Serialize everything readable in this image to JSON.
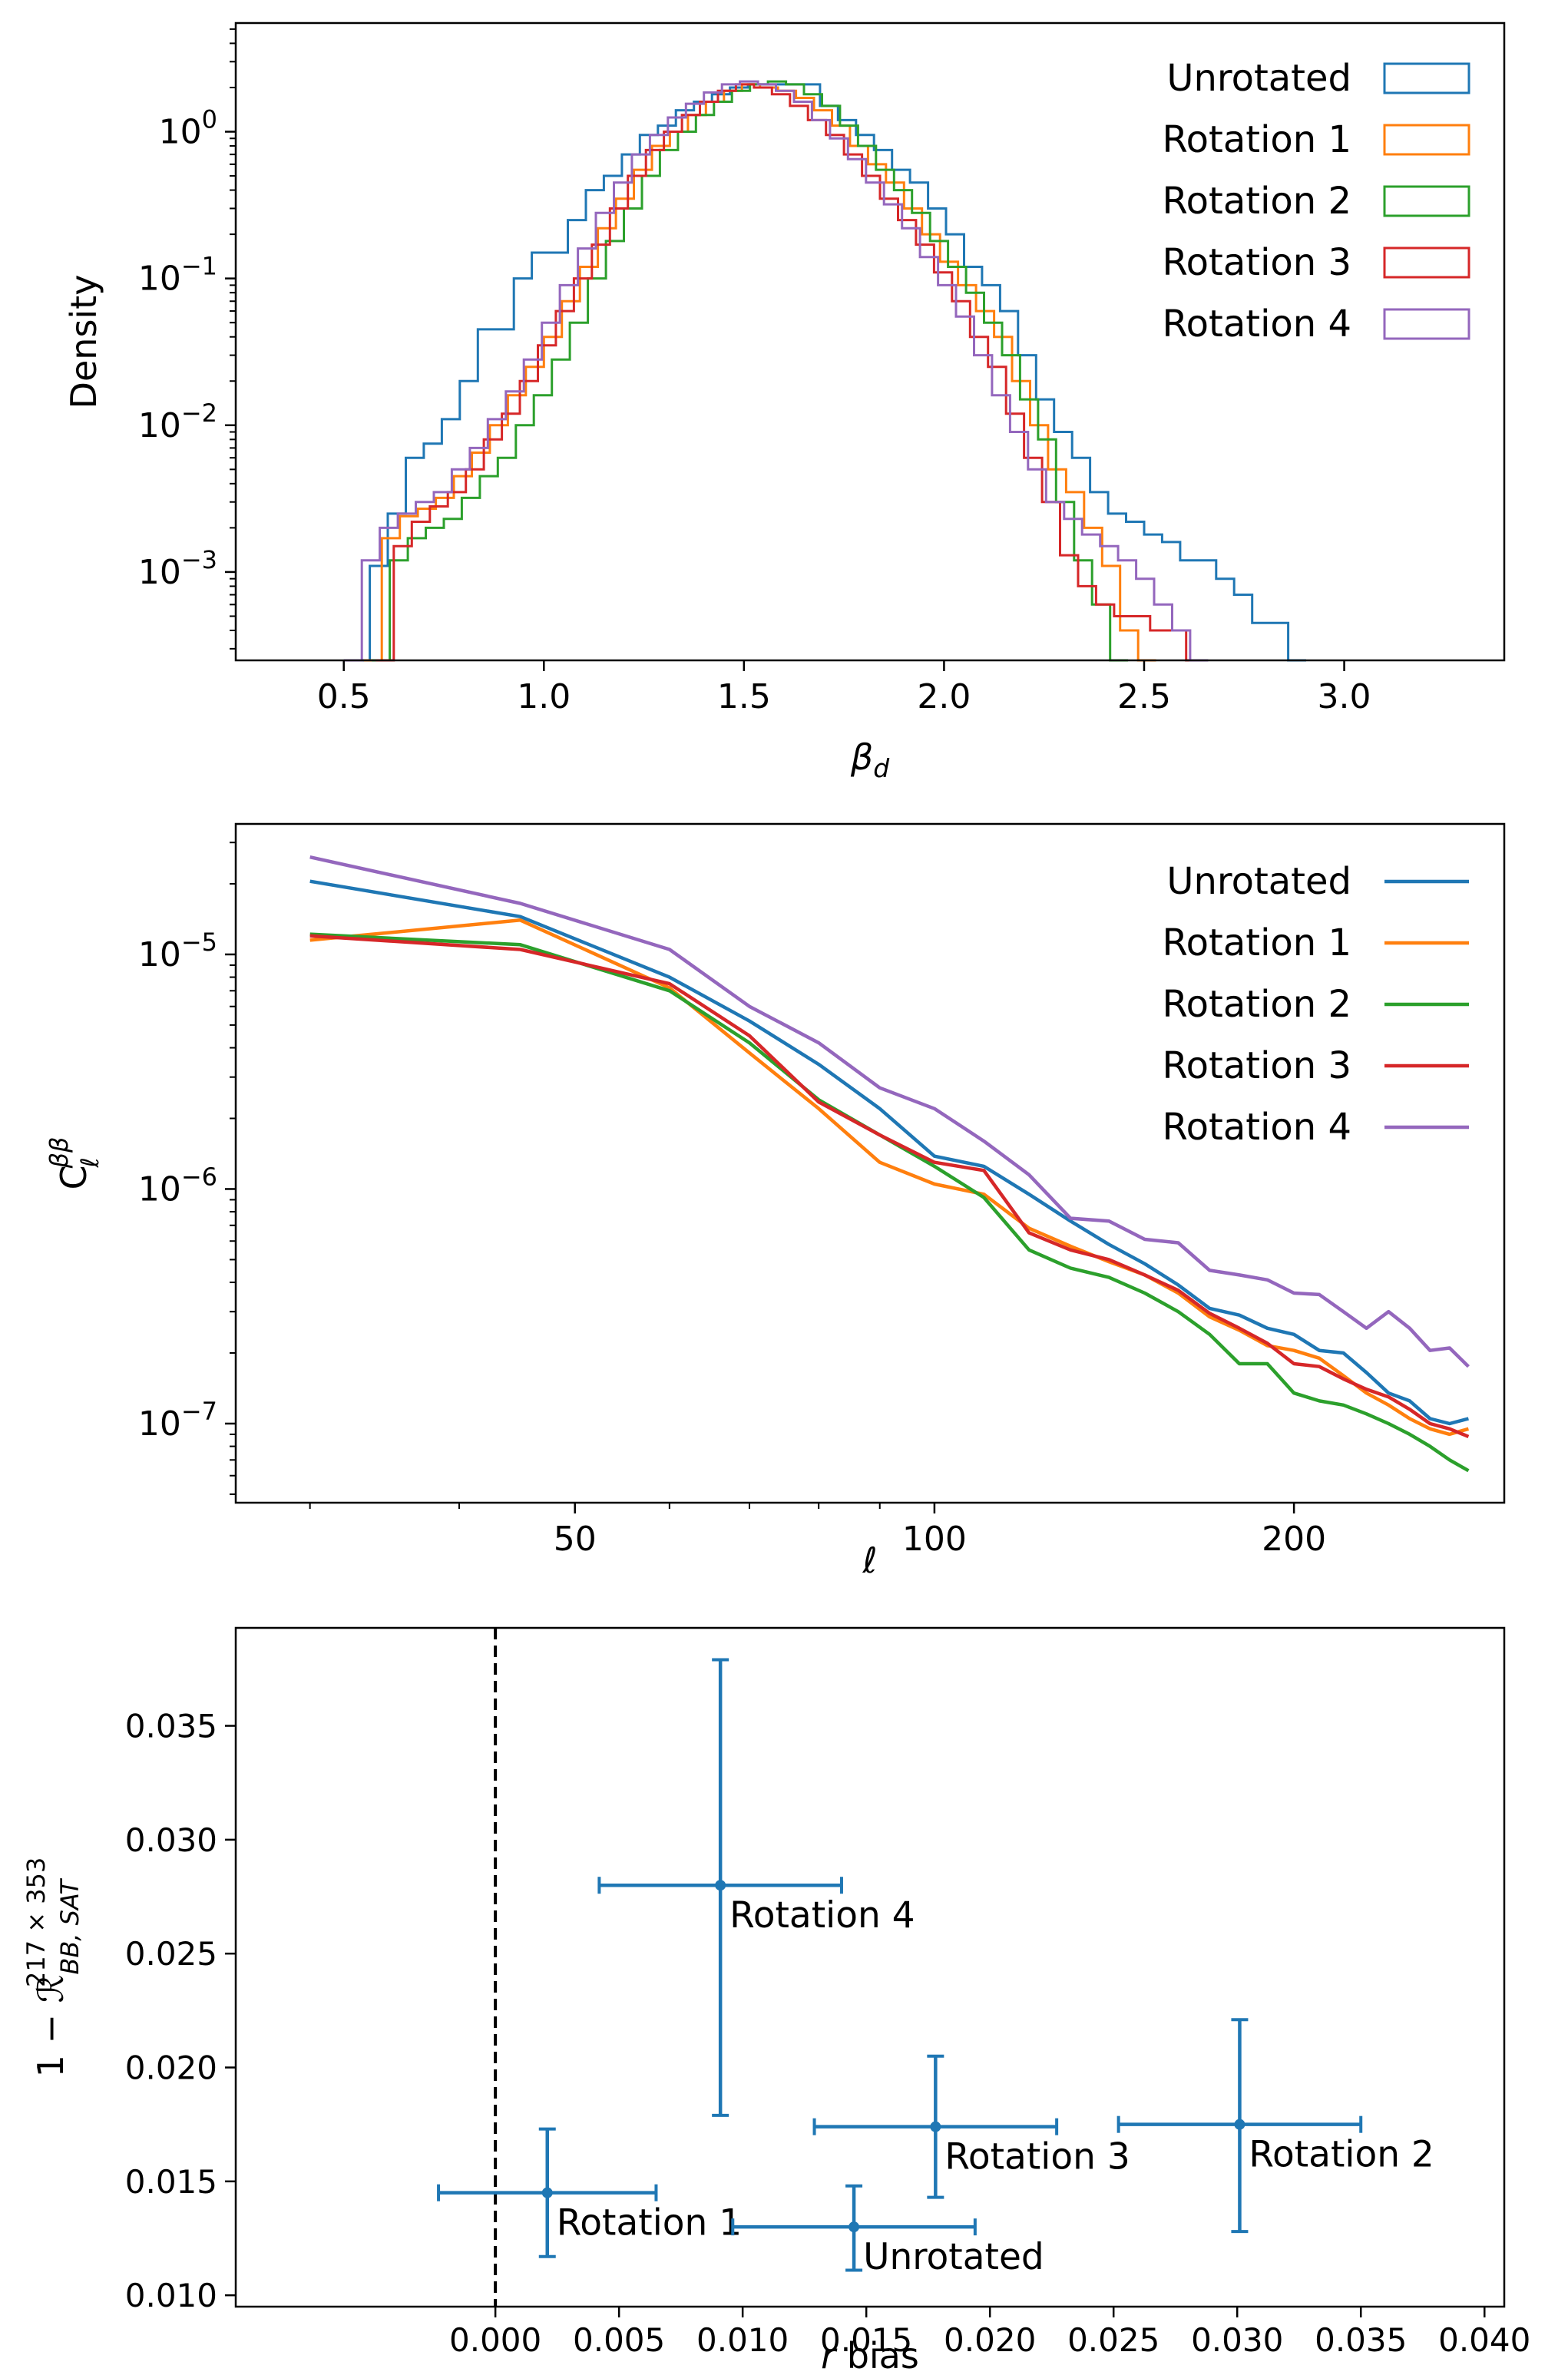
{
  "colors": {
    "Unrotated": "#1f77b4",
    "Rotation 1": "#ff7f0e",
    "Rotation 2": "#2ca02c",
    "Rotation 3": "#d62728",
    "Rotation 4": "#9467bd"
  },
  "chart_data": [
    {
      "type": "histogram",
      "scale": "log-y",
      "xlabel": "β_d",
      "ylabel": "Density",
      "xlim": [
        0.23,
        3.4
      ],
      "ylim": [
        0.00025,
        5.5
      ],
      "xticks": [
        0.5,
        1.0,
        1.5,
        2.0,
        2.5,
        3.0
      ],
      "xtick_labels": [
        "0.5",
        "1.0",
        "1.5",
        "2.0",
        "2.5",
        "3.0"
      ],
      "yticks": [
        0.001,
        0.01,
        0.1,
        1
      ],
      "ytick_labels": [
        {
          "base": "10",
          "exp": "−3"
        },
        {
          "base": "10",
          "exp": "−2"
        },
        {
          "base": "10",
          "exp": "−1"
        },
        {
          "base": "10",
          "exp": "0"
        }
      ],
      "legend": [
        "Unrotated",
        "Rotation 1",
        "Rotation 2",
        "Rotation 3",
        "Rotation 4"
      ],
      "legend_position": "upper right",
      "series": [
        {
          "name": "Unrotated",
          "start": 0.52,
          "width": 0.045,
          "values": [
            0.00025,
            0.0011,
            0.0025,
            0.006,
            0.0075,
            0.011,
            0.02,
            0.045,
            0.045,
            0.1,
            0.15,
            0.15,
            0.25,
            0.4,
            0.5,
            0.7,
            0.95,
            1.1,
            1.4,
            1.6,
            1.8,
            2.0,
            2.1,
            2.1,
            2.1,
            2.1,
            1.5,
            1.2,
            0.95,
            0.75,
            0.55,
            0.45,
            0.3,
            0.2,
            0.12,
            0.09,
            0.06,
            0.03,
            0.015,
            0.009,
            0.006,
            0.0035,
            0.0025,
            0.0022,
            0.0018,
            0.0016,
            0.0012,
            0.0012,
            0.0009,
            0.0007,
            0.00045,
            0.00045,
            0.00025
          ]
        },
        {
          "name": "Rotation 1",
          "start": 0.55,
          "width": 0.045,
          "values": [
            0.00025,
            0.0017,
            0.0024,
            0.0027,
            0.0032,
            0.0045,
            0.0065,
            0.01,
            0.016,
            0.025,
            0.04,
            0.07,
            0.12,
            0.22,
            0.35,
            0.55,
            0.8,
            1.0,
            1.3,
            1.6,
            1.9,
            2.1,
            2.0,
            1.9,
            1.7,
            1.4,
            1.1,
            0.8,
            0.6,
            0.45,
            0.3,
            0.2,
            0.13,
            0.09,
            0.06,
            0.04,
            0.02,
            0.01,
            0.005,
            0.0035,
            0.002,
            0.0011,
            0.0004,
            0.00025
          ]
        },
        {
          "name": "Rotation 2",
          "start": 0.57,
          "width": 0.045,
          "values": [
            0.00025,
            0.0012,
            0.0017,
            0.002,
            0.0023,
            0.0032,
            0.0045,
            0.006,
            0.01,
            0.016,
            0.028,
            0.05,
            0.1,
            0.18,
            0.3,
            0.5,
            0.75,
            1.0,
            1.3,
            1.6,
            1.9,
            2.1,
            2.2,
            2.1,
            1.8,
            1.5,
            1.1,
            0.8,
            0.55,
            0.4,
            0.28,
            0.18,
            0.12,
            0.08,
            0.05,
            0.03,
            0.015,
            0.008,
            0.003,
            0.0012,
            0.0006,
            0.00025
          ]
        },
        {
          "name": "Rotation 3",
          "start": 0.58,
          "width": 0.045,
          "values": [
            0.00025,
            0.0015,
            0.0022,
            0.0028,
            0.0035,
            0.005,
            0.008,
            0.012,
            0.02,
            0.035,
            0.06,
            0.1,
            0.17,
            0.3,
            0.5,
            0.75,
            1.0,
            1.3,
            1.6,
            1.9,
            2.1,
            2.0,
            1.8,
            1.5,
            1.2,
            0.95,
            0.7,
            0.5,
            0.35,
            0.25,
            0.17,
            0.11,
            0.07,
            0.04,
            0.025,
            0.012,
            0.006,
            0.003,
            0.0013,
            0.0008,
            0.0006,
            0.0005,
            0.0005,
            0.0004,
            0.0004,
            0.00025
          ]
        },
        {
          "name": "Rotation 4",
          "start": 0.5,
          "width": 0.045,
          "values": [
            0.00025,
            0.0012,
            0.002,
            0.0025,
            0.003,
            0.0035,
            0.005,
            0.007,
            0.011,
            0.017,
            0.028,
            0.05,
            0.09,
            0.16,
            0.28,
            0.45,
            0.7,
            0.95,
            1.25,
            1.55,
            1.85,
            2.1,
            2.2,
            2.1,
            1.9,
            1.6,
            1.2,
            0.9,
            0.65,
            0.45,
            0.32,
            0.22,
            0.14,
            0.09,
            0.055,
            0.03,
            0.016,
            0.009,
            0.005,
            0.003,
            0.0023,
            0.0018,
            0.0015,
            0.0012,
            0.0009,
            0.0006,
            0.0004,
            0.00025
          ]
        }
      ]
    },
    {
      "type": "line",
      "scale": "log-log",
      "xlabel": "ℓ",
      "ylabel": "C_ℓ^ββ",
      "xlim": [
        26,
        300
      ],
      "ylim": [
        4.6e-08,
        3.6e-05
      ],
      "xticks": [
        50,
        100,
        200
      ],
      "xtick_labels": [
        "50",
        "100",
        "200"
      ],
      "yticks": [
        1e-07,
        1e-06,
        1e-05
      ],
      "ytick_labels": [
        {
          "base": "10",
          "exp": "−7"
        },
        {
          "base": "10",
          "exp": "−6"
        },
        {
          "base": "10",
          "exp": "−5"
        }
      ],
      "legend": [
        "Unrotated",
        "Rotation 1",
        "Rotation 2",
        "Rotation 3",
        "Rotation 4"
      ],
      "legend_position": "upper right",
      "ell": [
        30,
        45,
        60,
        70,
        80,
        90,
        100,
        110,
        120,
        130,
        140,
        150,
        160,
        170,
        180,
        190,
        200,
        210,
        220,
        230,
        240,
        250,
        260,
        270,
        280
      ],
      "series": [
        {
          "name": "Unrotated",
          "values": [
            2.05e-05,
            1.45e-05,
            8e-06,
            5.2e-06,
            3.4e-06,
            2.2e-06,
            1.38e-06,
            1.25e-06,
            9.5e-07,
            7.3e-07,
            5.8e-07,
            4.8e-07,
            3.9e-07,
            3.1e-07,
            2.9e-07,
            2.55e-07,
            2.4e-07,
            2.05e-07,
            2e-07,
            1.65e-07,
            1.35e-07,
            1.25e-07,
            1.05e-07,
            1e-07,
            1.05e-07
          ]
        },
        {
          "name": "Rotation 1",
          "values": [
            1.15e-05,
            1.4e-05,
            7.2e-06,
            3.8e-06,
            2.2e-06,
            1.3e-06,
            1.05e-06,
            9.5e-07,
            6.8e-07,
            5.7e-07,
            4.9e-07,
            4.3e-07,
            3.6e-07,
            2.85e-07,
            2.5e-07,
            2.15e-07,
            2.05e-07,
            1.9e-07,
            1.6e-07,
            1.35e-07,
            1.2e-07,
            1.05e-07,
            9.5e-08,
            9e-08,
            9.5e-08
          ]
        },
        {
          "name": "Rotation 2",
          "values": [
            1.22e-05,
            1.1e-05,
            7e-06,
            4.2e-06,
            2.4e-06,
            1.7e-06,
            1.25e-06,
            9.2e-07,
            5.5e-07,
            4.6e-07,
            4.2e-07,
            3.6e-07,
            3e-07,
            2.4e-07,
            1.8e-07,
            1.8e-07,
            1.35e-07,
            1.25e-07,
            1.2e-07,
            1.1e-07,
            1e-07,
            9e-08,
            8e-08,
            7e-08,
            6.3e-08
          ]
        },
        {
          "name": "Rotation 3",
          "values": [
            1.2e-05,
            1.05e-05,
            7.5e-06,
            4.5e-06,
            2.35e-06,
            1.7e-06,
            1.3e-06,
            1.2e-06,
            6.5e-07,
            5.5e-07,
            5e-07,
            4.3e-07,
            3.7e-07,
            2.95e-07,
            2.55e-07,
            2.2e-07,
            1.8e-07,
            1.75e-07,
            1.55e-07,
            1.4e-07,
            1.3e-07,
            1.15e-07,
            1e-07,
            9.5e-08,
            8.8e-08
          ]
        },
        {
          "name": "Rotation 4",
          "values": [
            2.6e-05,
            1.65e-05,
            1.05e-05,
            6e-06,
            4.2e-06,
            2.7e-06,
            2.2e-06,
            1.6e-06,
            1.15e-06,
            7.5e-07,
            7.3e-07,
            6.1e-07,
            5.9e-07,
            4.5e-07,
            4.3e-07,
            4.1e-07,
            3.6e-07,
            3.55e-07,
            3e-07,
            2.55e-07,
            3e-07,
            2.55e-07,
            2.05e-07,
            2.1e-07,
            1.75e-07
          ]
        }
      ]
    },
    {
      "type": "scatter",
      "errorbars": true,
      "xlabel": "r bias",
      "ylabel": "1 − R_{BB,SAT}^{217×353}",
      "xlim": [
        -0.0105,
        0.0408
      ],
      "ylim": [
        0.0095,
        0.0393
      ],
      "xticks": [
        0,
        0.005,
        0.01,
        0.015,
        0.02,
        0.025,
        0.03,
        0.035,
        0.04
      ],
      "xtick_labels": [
        "0.000",
        "0.005",
        "0.010",
        "0.015",
        "0.020",
        "0.025",
        "0.030",
        "0.035",
        "0.040"
      ],
      "yticks": [
        0.01,
        0.015,
        0.02,
        0.025,
        0.03,
        0.035
      ],
      "ytick_labels": [
        "0.010",
        "0.015",
        "0.020",
        "0.025",
        "0.030",
        "0.035"
      ],
      "vline_x": 0,
      "points": [
        {
          "name": "Rotation 1",
          "x": 0.0021,
          "y": 0.0145,
          "xerr": 0.0044,
          "yerr_lo": 0.0028,
          "yerr_hi": 0.0028
        },
        {
          "name": "Rotation 4",
          "x": 0.0091,
          "y": 0.028,
          "xerr": 0.0049,
          "yerr_lo": 0.0101,
          "yerr_hi": 0.0099
        },
        {
          "name": "Unrotated",
          "x": 0.0145,
          "y": 0.013,
          "xerr": 0.0049,
          "yerr_lo": 0.0019,
          "yerr_hi": 0.0018
        },
        {
          "name": "Rotation 3",
          "x": 0.0178,
          "y": 0.0174,
          "xerr": 0.0049,
          "yerr_lo": 0.0031,
          "yerr_hi": 0.0031
        },
        {
          "name": "Rotation 2",
          "x": 0.0301,
          "y": 0.0175,
          "xerr": 0.0049,
          "yerr_lo": 0.0047,
          "yerr_hi": 0.0046
        }
      ]
    }
  ]
}
